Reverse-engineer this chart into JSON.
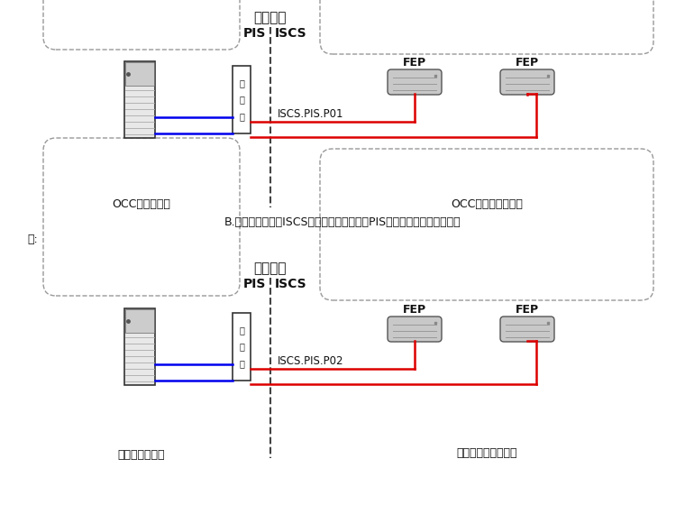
{
  "background_color": "#ffffff",
  "title1": "接口分界",
  "label_pis1": "PIS",
  "label_iscs1": "ISCS",
  "box1_left_label": "OCC通信设备室",
  "box1_right_label": "OCC综合监控设备室",
  "patch_chars": [
    "配",
    "线",
    "架"
  ],
  "interface_label1": "ISCS.PIS.P01",
  "interface_label2": "ISCS.PIS.P02",
  "fep_label": "FEP",
  "middle_text": "B.综合监控系统（ISCS）与乘客信息系统（PIS）在车站的接口界面如下",
  "map_label": "图:",
  "title2": "接口分界",
  "label_pis2": "PIS",
  "label_iscs2": "ISCS",
  "box2_left_label": "车站通信设备室",
  "box2_right_label": "车站综合监控设备室",
  "dashed_line_color": "#444444",
  "box_edge_color": "#999999",
  "blue_color": "#0000ee",
  "red_color": "#dd0000",
  "text_color": "#111111"
}
